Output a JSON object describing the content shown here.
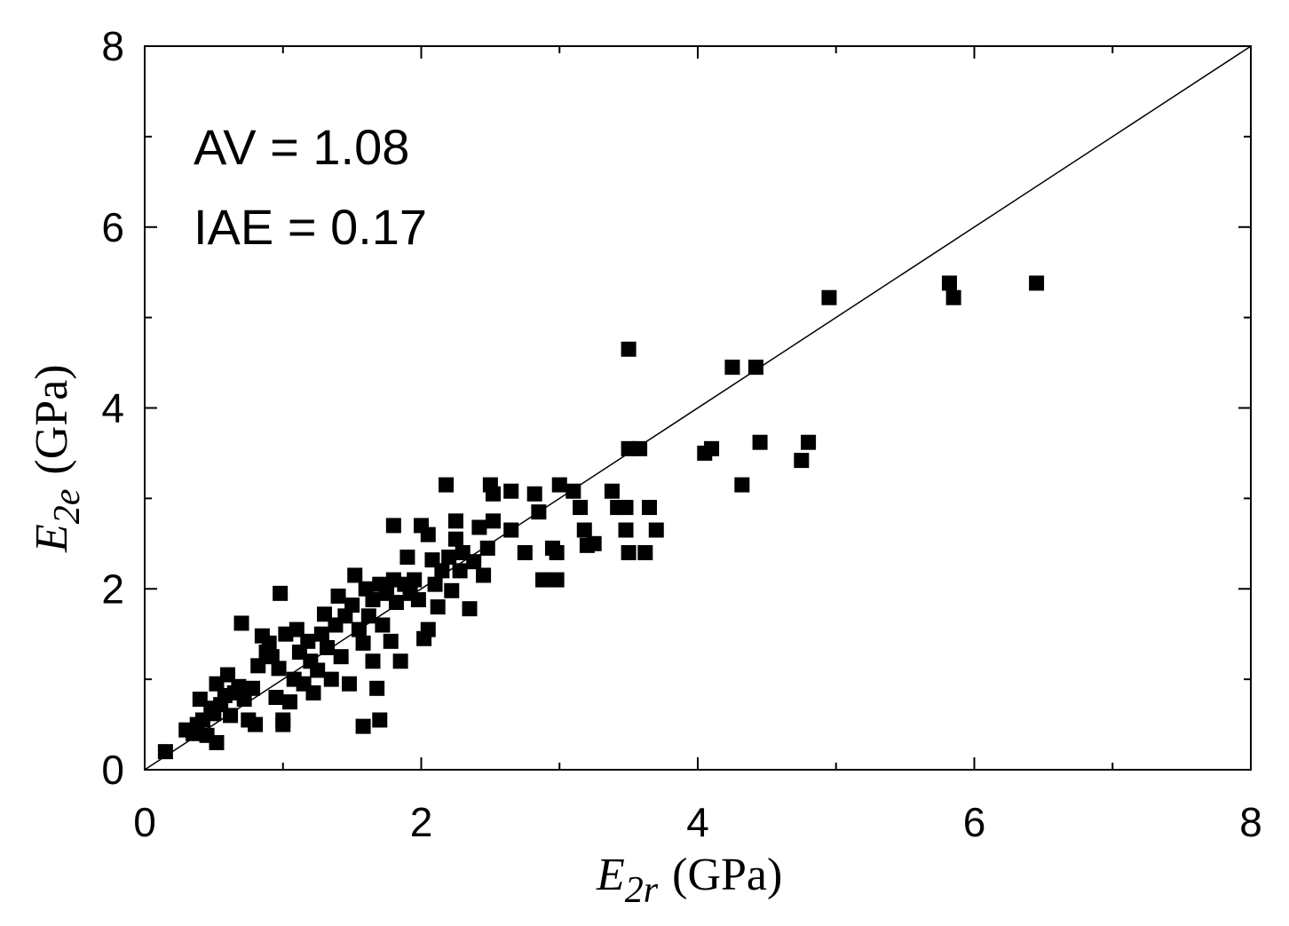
{
  "chart_data": {
    "type": "scatter",
    "xlabel": {
      "symbol": "E",
      "subscript": "2r",
      "unit": "(GPa)"
    },
    "ylabel": {
      "symbol": "E",
      "subscript": "2e",
      "unit": "(GPa)"
    },
    "xlim": [
      0,
      8
    ],
    "ylim": [
      0,
      8
    ],
    "xticks": [
      "0",
      "2",
      "4",
      "6",
      "8"
    ],
    "yticks": [
      "0",
      "2",
      "4",
      "6",
      "8"
    ],
    "grid": false,
    "annotations": [
      "AV = 1.08",
      "IAE = 0.17"
    ],
    "reference_line": {
      "from": [
        0,
        0
      ],
      "to": [
        8,
        8
      ]
    },
    "marker": "filled-square",
    "marker_color": "#000000",
    "points": [
      [
        0.15,
        0.2
      ],
      [
        0.3,
        0.44
      ],
      [
        0.35,
        0.4
      ],
      [
        0.38,
        0.5
      ],
      [
        0.4,
        0.78
      ],
      [
        0.42,
        0.55
      ],
      [
        0.45,
        0.38
      ],
      [
        0.48,
        0.68
      ],
      [
        0.5,
        0.62
      ],
      [
        0.52,
        0.95
      ],
      [
        0.52,
        0.3
      ],
      [
        0.55,
        0.72
      ],
      [
        0.58,
        0.82
      ],
      [
        0.6,
        1.05
      ],
      [
        0.62,
        0.6
      ],
      [
        0.65,
        0.85
      ],
      [
        0.68,
        0.92
      ],
      [
        0.7,
        1.62
      ],
      [
        0.72,
        0.78
      ],
      [
        0.75,
        0.55
      ],
      [
        0.78,
        0.9
      ],
      [
        0.8,
        0.5
      ],
      [
        0.82,
        1.15
      ],
      [
        0.85,
        1.48
      ],
      [
        0.88,
        1.3
      ],
      [
        0.9,
        1.4
      ],
      [
        0.92,
        1.25
      ],
      [
        0.95,
        0.8
      ],
      [
        0.97,
        1.12
      ],
      [
        0.98,
        1.95
      ],
      [
        1.0,
        0.55
      ],
      [
        1.0,
        0.5
      ],
      [
        1.02,
        1.5
      ],
      [
        1.05,
        0.75
      ],
      [
        1.08,
        1.0
      ],
      [
        1.1,
        1.55
      ],
      [
        1.12,
        1.3
      ],
      [
        1.15,
        0.95
      ],
      [
        1.18,
        1.42
      ],
      [
        1.2,
        1.2
      ],
      [
        1.22,
        0.85
      ],
      [
        1.25,
        1.1
      ],
      [
        1.28,
        1.5
      ],
      [
        1.3,
        1.72
      ],
      [
        1.32,
        1.35
      ],
      [
        1.35,
        1.0
      ],
      [
        1.38,
        1.6
      ],
      [
        1.4,
        1.92
      ],
      [
        1.42,
        1.25
      ],
      [
        1.45,
        1.7
      ],
      [
        1.48,
        0.95
      ],
      [
        1.5,
        1.82
      ],
      [
        1.52,
        2.15
      ],
      [
        1.55,
        1.55
      ],
      [
        1.58,
        1.4
      ],
      [
        1.58,
        0.48
      ],
      [
        1.6,
        2.0
      ],
      [
        1.62,
        1.7
      ],
      [
        1.65,
        1.2
      ],
      [
        1.65,
        1.88
      ],
      [
        1.68,
        0.9
      ],
      [
        1.7,
        2.05
      ],
      [
        1.7,
        0.55
      ],
      [
        1.72,
        1.6
      ],
      [
        1.75,
        1.95
      ],
      [
        1.78,
        1.42
      ],
      [
        1.8,
        2.7
      ],
      [
        1.8,
        2.1
      ],
      [
        1.82,
        1.85
      ],
      [
        1.85,
        1.2
      ],
      [
        1.88,
        2.05
      ],
      [
        1.9,
        2.35
      ],
      [
        1.92,
        1.95
      ],
      [
        1.95,
        2.1
      ],
      [
        1.98,
        1.88
      ],
      [
        2.0,
        2.7
      ],
      [
        2.02,
        1.45
      ],
      [
        2.05,
        2.6
      ],
      [
        2.05,
        1.55
      ],
      [
        2.08,
        2.32
      ],
      [
        2.1,
        2.05
      ],
      [
        2.12,
        1.8
      ],
      [
        2.15,
        2.2
      ],
      [
        2.18,
        3.15
      ],
      [
        2.2,
        2.35
      ],
      [
        2.22,
        1.98
      ],
      [
        2.25,
        2.75
      ],
      [
        2.25,
        2.55
      ],
      [
        2.28,
        2.2
      ],
      [
        2.3,
        2.4
      ],
      [
        2.35,
        1.78
      ],
      [
        2.38,
        2.3
      ],
      [
        2.42,
        2.68
      ],
      [
        2.45,
        2.15
      ],
      [
        2.48,
        2.45
      ],
      [
        2.5,
        3.15
      ],
      [
        2.52,
        2.75
      ],
      [
        2.52,
        3.05
      ],
      [
        2.65,
        3.08
      ],
      [
        2.65,
        2.65
      ],
      [
        2.75,
        2.4
      ],
      [
        2.82,
        3.05
      ],
      [
        2.85,
        2.85
      ],
      [
        2.88,
        2.1
      ],
      [
        2.95,
        2.45
      ],
      [
        2.98,
        2.1
      ],
      [
        2.98,
        2.4
      ],
      [
        3.0,
        3.15
      ],
      [
        3.1,
        3.08
      ],
      [
        3.15,
        2.9
      ],
      [
        3.18,
        2.65
      ],
      [
        3.2,
        2.48
      ],
      [
        3.25,
        2.5
      ],
      [
        3.38,
        3.08
      ],
      [
        3.42,
        2.9
      ],
      [
        3.48,
        2.65
      ],
      [
        3.48,
        2.9
      ],
      [
        3.5,
        3.55
      ],
      [
        3.5,
        2.4
      ],
      [
        3.5,
        4.65
      ],
      [
        3.58,
        3.55
      ],
      [
        3.62,
        2.4
      ],
      [
        3.65,
        2.9
      ],
      [
        3.7,
        2.65
      ],
      [
        4.05,
        3.5
      ],
      [
        4.1,
        3.55
      ],
      [
        4.25,
        4.45
      ],
      [
        4.32,
        3.15
      ],
      [
        4.42,
        4.45
      ],
      [
        4.45,
        3.62
      ],
      [
        4.75,
        3.42
      ],
      [
        4.8,
        3.62
      ],
      [
        4.95,
        5.22
      ],
      [
        5.82,
        5.38
      ],
      [
        5.85,
        5.22
      ],
      [
        6.45,
        5.38
      ]
    ]
  }
}
